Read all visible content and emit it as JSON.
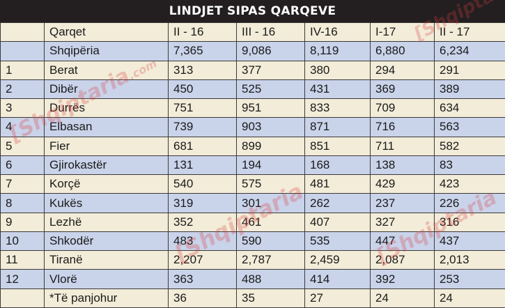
{
  "chart_data": {
    "type": "table",
    "title": "LINDJET SIPAS QARQEVE",
    "header": [
      "",
      "Qarqet",
      "II - 16",
      "III - 16",
      "IV-16",
      "I-17",
      "II - 17"
    ],
    "rows": [
      [
        "",
        "Shqipëria",
        "7,365",
        "9,086",
        "8,119",
        "6,880",
        "6,234"
      ],
      [
        "1",
        "Berat",
        "313",
        "377",
        "380",
        "294",
        "291"
      ],
      [
        "2",
        "Dibër",
        "450",
        "525",
        "431",
        "369",
        "389"
      ],
      [
        "3",
        "Durrës",
        "751",
        "951",
        "833",
        "709",
        "634"
      ],
      [
        "4",
        "Elbasan",
        "739",
        "903",
        "871",
        "716",
        "563"
      ],
      [
        "5",
        "Fier",
        "681",
        "899",
        "851",
        "711",
        "582"
      ],
      [
        "6",
        "Gjirokastër",
        "131",
        "194",
        "168",
        "138",
        "83"
      ],
      [
        "7",
        "Korçë",
        "540",
        "575",
        "481",
        "429",
        "423"
      ],
      [
        "8",
        "Kukës",
        "319",
        "301",
        "262",
        "237",
        "226"
      ],
      [
        "9",
        "Lezhë",
        "352",
        "461",
        "407",
        "327",
        "316"
      ],
      [
        "10",
        "Shkodër",
        "483",
        "590",
        "535",
        "447",
        "437"
      ],
      [
        "11",
        "Tiranë",
        "2,207",
        "2,787",
        "2,459",
        "2,087",
        "2,013"
      ],
      [
        "12",
        "Vlorë",
        "363",
        "488",
        "414",
        "392",
        "253"
      ],
      [
        "",
        "*Të panjohur",
        "36",
        "35",
        "27",
        "24",
        "24"
      ]
    ]
  },
  "colors": {
    "title_bg": "#231f20",
    "row_cream": "#f2ecd8",
    "row_blue": "#c9d3ea",
    "watermark": "#dc3c3c"
  },
  "watermark": {
    "text_main": "Shqiptaria",
    "text_com": ".com"
  }
}
